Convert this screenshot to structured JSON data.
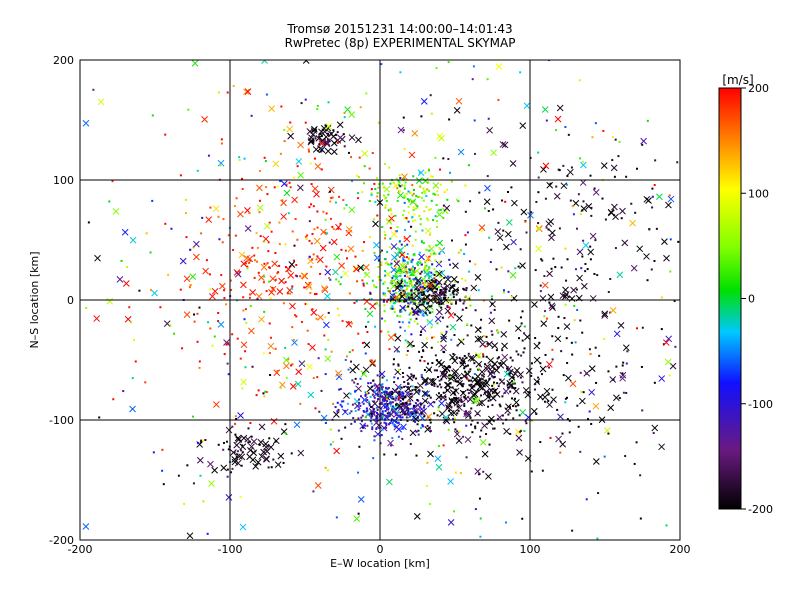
{
  "chart_data": {
    "type": "scatter",
    "title": "Tromsø 20151231 14:00:00–14:01:43",
    "subtitle": "RwPretec (8p) EXPERIMENTAL SKYMAP",
    "xlabel": "E–W location [km]",
    "ylabel": "N–S location [km]",
    "xlim": [
      -200,
      200
    ],
    "ylim": [
      -200,
      200
    ],
    "x_ticks": [
      "-200",
      "-100",
      "0",
      "100",
      "200"
    ],
    "y_ticks": [
      "-200",
      "-100",
      "0",
      "100",
      "200"
    ],
    "grid": true,
    "colorbar": {
      "label": "[m/s]",
      "range": [
        -200,
        200
      ],
      "ticks": [
        "200",
        "100",
        "0",
        "-100",
        "-200"
      ],
      "colormap": "black-purple-blue-cyan-green-yellow-red"
    },
    "marker_types": [
      "cross",
      "dot"
    ],
    "clusters": [
      {
        "x": 20,
        "y": 15,
        "sx": 14,
        "sy": 18,
        "n": 420,
        "v": 10,
        "vs": 70,
        "cross": 0.12
      },
      {
        "x": 5,
        "y": -90,
        "sx": 14,
        "sy": 12,
        "n": 380,
        "v": -110,
        "vs": 45,
        "cross": 0.15
      },
      {
        "x": 55,
        "y": -70,
        "sx": 28,
        "sy": 22,
        "n": 420,
        "v": -195,
        "vs": 15,
        "cross": 0.3
      },
      {
        "x": 35,
        "y": 5,
        "sx": 12,
        "sy": 8,
        "n": 160,
        "v": -190,
        "vs": 20,
        "cross": 0.2
      },
      {
        "x": -35,
        "y": 135,
        "sx": 8,
        "sy": 6,
        "n": 60,
        "v": -190,
        "vs": 20,
        "cross": 0.5
      },
      {
        "x": 20,
        "y": 85,
        "sx": 15,
        "sy": 12,
        "n": 150,
        "v": 60,
        "vs": 40,
        "cross": 0.1
      },
      {
        "x": -90,
        "y": -125,
        "sx": 15,
        "sy": 10,
        "n": 80,
        "v": -190,
        "vs": 20,
        "cross": 0.4
      },
      {
        "x": -60,
        "y": 30,
        "sx": 40,
        "sy": 50,
        "n": 300,
        "v": 180,
        "vs": 30,
        "cross": 0.3
      },
      {
        "x": 130,
        "y": 70,
        "sx": 40,
        "sy": 35,
        "n": 140,
        "v": -190,
        "vs": 20,
        "cross": 0.35
      },
      {
        "x": 120,
        "y": -60,
        "sx": 40,
        "sy": 45,
        "n": 170,
        "v": -190,
        "vs": 20,
        "cross": 0.35
      },
      {
        "x": 0,
        "y": 0,
        "sx": 110,
        "sy": 110,
        "n": 650,
        "v": 0,
        "vs": 140,
        "cross": 0.3
      }
    ]
  }
}
